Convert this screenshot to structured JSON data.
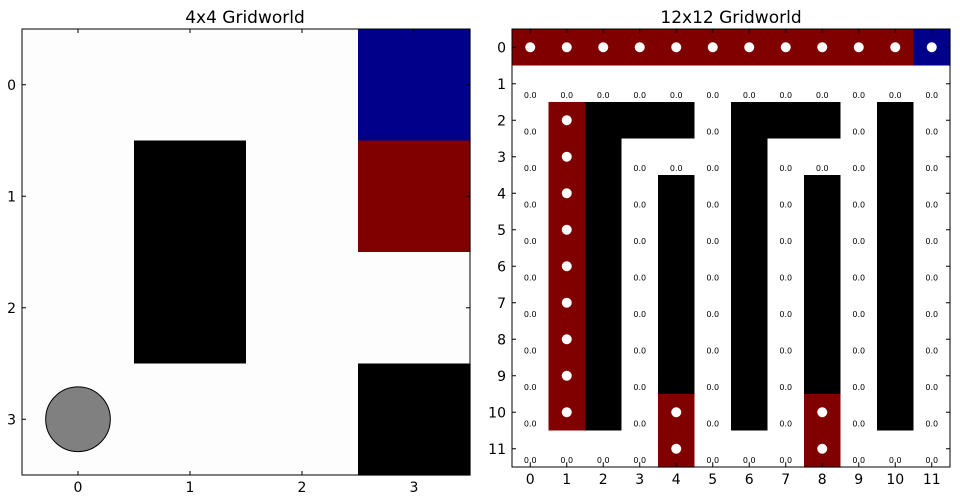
{
  "chart_data": [
    {
      "type": "heatmap",
      "title": "4x4 Gridworld",
      "rows": 4,
      "cols": 4,
      "xticks": [
        "0",
        "1",
        "2",
        "3"
      ],
      "yticks": [
        "0",
        "1",
        "2",
        "3"
      ],
      "cells": [
        [
          "empty",
          "empty",
          "empty",
          "blue"
        ],
        [
          "empty",
          "wall",
          "empty",
          "red"
        ],
        [
          "empty",
          "wall",
          "empty",
          "empty"
        ],
        [
          "empty",
          "empty",
          "empty",
          "wall"
        ]
      ],
      "agent": {
        "row": 3,
        "col": 0
      },
      "colors": {
        "empty": "#fdfdfd",
        "wall": "#000000",
        "red": "#800000",
        "blue": "#00008b",
        "agent": "#808080"
      }
    },
    {
      "type": "heatmap",
      "title": "12x12 Gridworld",
      "rows": 12,
      "cols": 12,
      "xticks": [
        "0",
        "1",
        "2",
        "3",
        "4",
        "5",
        "6",
        "7",
        "8",
        "9",
        "10",
        "11"
      ],
      "yticks": [
        "0",
        "1",
        "2",
        "3",
        "4",
        "5",
        "6",
        "7",
        "8",
        "9",
        "10",
        "11"
      ],
      "cells": [
        [
          "red",
          "red",
          "red",
          "red",
          "red",
          "red",
          "red",
          "red",
          "red",
          "red",
          "red",
          "blue"
        ],
        [
          "empty",
          "empty",
          "empty",
          "empty",
          "empty",
          "empty",
          "empty",
          "empty",
          "empty",
          "empty",
          "empty",
          "empty"
        ],
        [
          "empty",
          "red",
          "wall",
          "wall",
          "wall",
          "empty",
          "wall",
          "wall",
          "wall",
          "empty",
          "wall",
          "empty"
        ],
        [
          "empty",
          "red",
          "wall",
          "empty",
          "empty",
          "empty",
          "wall",
          "empty",
          "empty",
          "empty",
          "wall",
          "empty"
        ],
        [
          "empty",
          "red",
          "wall",
          "empty",
          "wall",
          "empty",
          "wall",
          "empty",
          "wall",
          "empty",
          "wall",
          "empty"
        ],
        [
          "empty",
          "red",
          "wall",
          "empty",
          "wall",
          "empty",
          "wall",
          "empty",
          "wall",
          "empty",
          "wall",
          "empty"
        ],
        [
          "empty",
          "red",
          "wall",
          "empty",
          "wall",
          "empty",
          "wall",
          "empty",
          "wall",
          "empty",
          "wall",
          "empty"
        ],
        [
          "empty",
          "red",
          "wall",
          "empty",
          "wall",
          "empty",
          "wall",
          "empty",
          "wall",
          "empty",
          "wall",
          "empty"
        ],
        [
          "empty",
          "red",
          "wall",
          "empty",
          "wall",
          "empty",
          "wall",
          "empty",
          "wall",
          "empty",
          "wall",
          "empty"
        ],
        [
          "empty",
          "red",
          "wall",
          "empty",
          "wall",
          "empty",
          "wall",
          "empty",
          "wall",
          "empty",
          "wall",
          "empty"
        ],
        [
          "empty",
          "red",
          "wall",
          "empty",
          "red",
          "empty",
          "wall",
          "empty",
          "red",
          "empty",
          "wall",
          "empty"
        ],
        [
          "empty",
          "empty",
          "empty",
          "empty",
          "red",
          "empty",
          "empty",
          "empty",
          "red",
          "empty",
          "empty",
          "empty"
        ]
      ],
      "dots": [
        [
          0,
          0
        ],
        [
          0,
          1
        ],
        [
          0,
          2
        ],
        [
          0,
          3
        ],
        [
          0,
          4
        ],
        [
          0,
          5
        ],
        [
          0,
          6
        ],
        [
          0,
          7
        ],
        [
          0,
          8
        ],
        [
          0,
          9
        ],
        [
          0,
          10
        ],
        [
          0,
          11
        ],
        [
          2,
          1
        ],
        [
          3,
          1
        ],
        [
          4,
          1
        ],
        [
          5,
          1
        ],
        [
          6,
          1
        ],
        [
          7,
          1
        ],
        [
          8,
          1
        ],
        [
          9,
          1
        ],
        [
          10,
          1
        ],
        [
          10,
          4
        ],
        [
          11,
          4
        ],
        [
          10,
          8
        ],
        [
          11,
          8
        ]
      ],
      "value_label": "0.0",
      "colors": {
        "empty": "#ffffff",
        "wall": "#000000",
        "red": "#800000",
        "blue": "#00008b",
        "dot": "#ffffff"
      }
    }
  ]
}
